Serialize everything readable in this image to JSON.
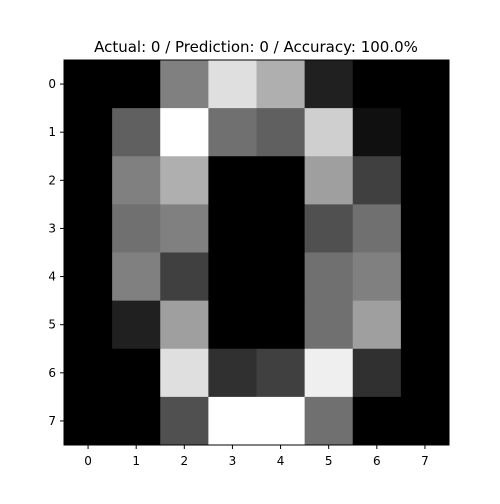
{
  "chart_data": {
    "type": "heatmap",
    "title": "Actual: 0 / Prediction: 0 / Accuracy: 100.0%",
    "xlabel": "",
    "ylabel": "",
    "colormap": "gray",
    "value_range": [
      0,
      16
    ],
    "x_ticks": [
      "0",
      "1",
      "2",
      "3",
      "4",
      "5",
      "6",
      "7"
    ],
    "y_ticks": [
      "0",
      "1",
      "2",
      "3",
      "4",
      "5",
      "6",
      "7"
    ],
    "grid": false,
    "values": [
      [
        0,
        0,
        8,
        14,
        11,
        2,
        0,
        0
      ],
      [
        0,
        6,
        16,
        7,
        6,
        13,
        1,
        0
      ],
      [
        0,
        8,
        11,
        0,
        0,
        10,
        4,
        0
      ],
      [
        0,
        7,
        8,
        0,
        0,
        5,
        7,
        0
      ],
      [
        0,
        8,
        4,
        0,
        0,
        7,
        8,
        0
      ],
      [
        0,
        2,
        10,
        0,
        0,
        7,
        10,
        0
      ],
      [
        0,
        0,
        14,
        3,
        4,
        15,
        3,
        0
      ],
      [
        0,
        0,
        5,
        16,
        16,
        7,
        0,
        0
      ]
    ]
  }
}
